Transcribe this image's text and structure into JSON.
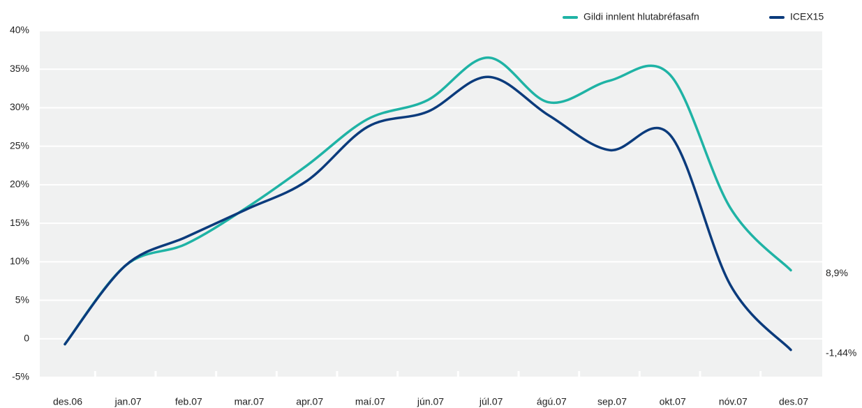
{
  "chart_data": {
    "type": "line",
    "categories": [
      "des.06",
      "jan.07",
      "feb.07",
      "mar.07",
      "apr.07",
      "maí.07",
      "jún.07",
      "júl.07",
      "ágú.07",
      "sep.07",
      "okt.07",
      "nóv.07",
      "des.07"
    ],
    "series": [
      {
        "name": "Gildi innlent hlutabréfasafn",
        "color": "#1fb3a5",
        "values": [
          -0.7,
          9.5,
          12.3,
          17,
          22.5,
          28.5,
          31,
          36.5,
          30.7,
          33.5,
          34.3,
          17,
          8.9
        ],
        "value_labels": [
          null,
          null,
          null,
          null,
          null,
          null,
          null,
          null,
          null,
          null,
          null,
          null,
          "8,9%"
        ]
      },
      {
        "name": "ICEX15",
        "color": "#0b3b7c",
        "values": [
          -0.7,
          9.5,
          13.2,
          16.8,
          20.5,
          27.5,
          29.5,
          34,
          29,
          24.5,
          26.5,
          7,
          -1.44
        ],
        "value_labels": [
          null,
          null,
          null,
          null,
          null,
          null,
          null,
          null,
          null,
          null,
          null,
          null,
          "-1,44%"
        ]
      }
    ],
    "ylim": [
      -5,
      40
    ],
    "yticks": [
      {
        "value": -5,
        "label": "-5%"
      },
      0,
      {
        "value": 5,
        "label": "5%"
      },
      {
        "value": 10,
        "label": "10%"
      },
      {
        "value": 15,
        "label": "15%"
      },
      {
        "value": 20,
        "label": "20%"
      },
      {
        "value": 25,
        "label": "25%"
      },
      {
        "value": 30,
        "label": "30%"
      },
      {
        "value": 35,
        "label": "35%"
      },
      {
        "value": 40,
        "label": "40%"
      }
    ],
    "grid": true,
    "legend": "top-right"
  }
}
